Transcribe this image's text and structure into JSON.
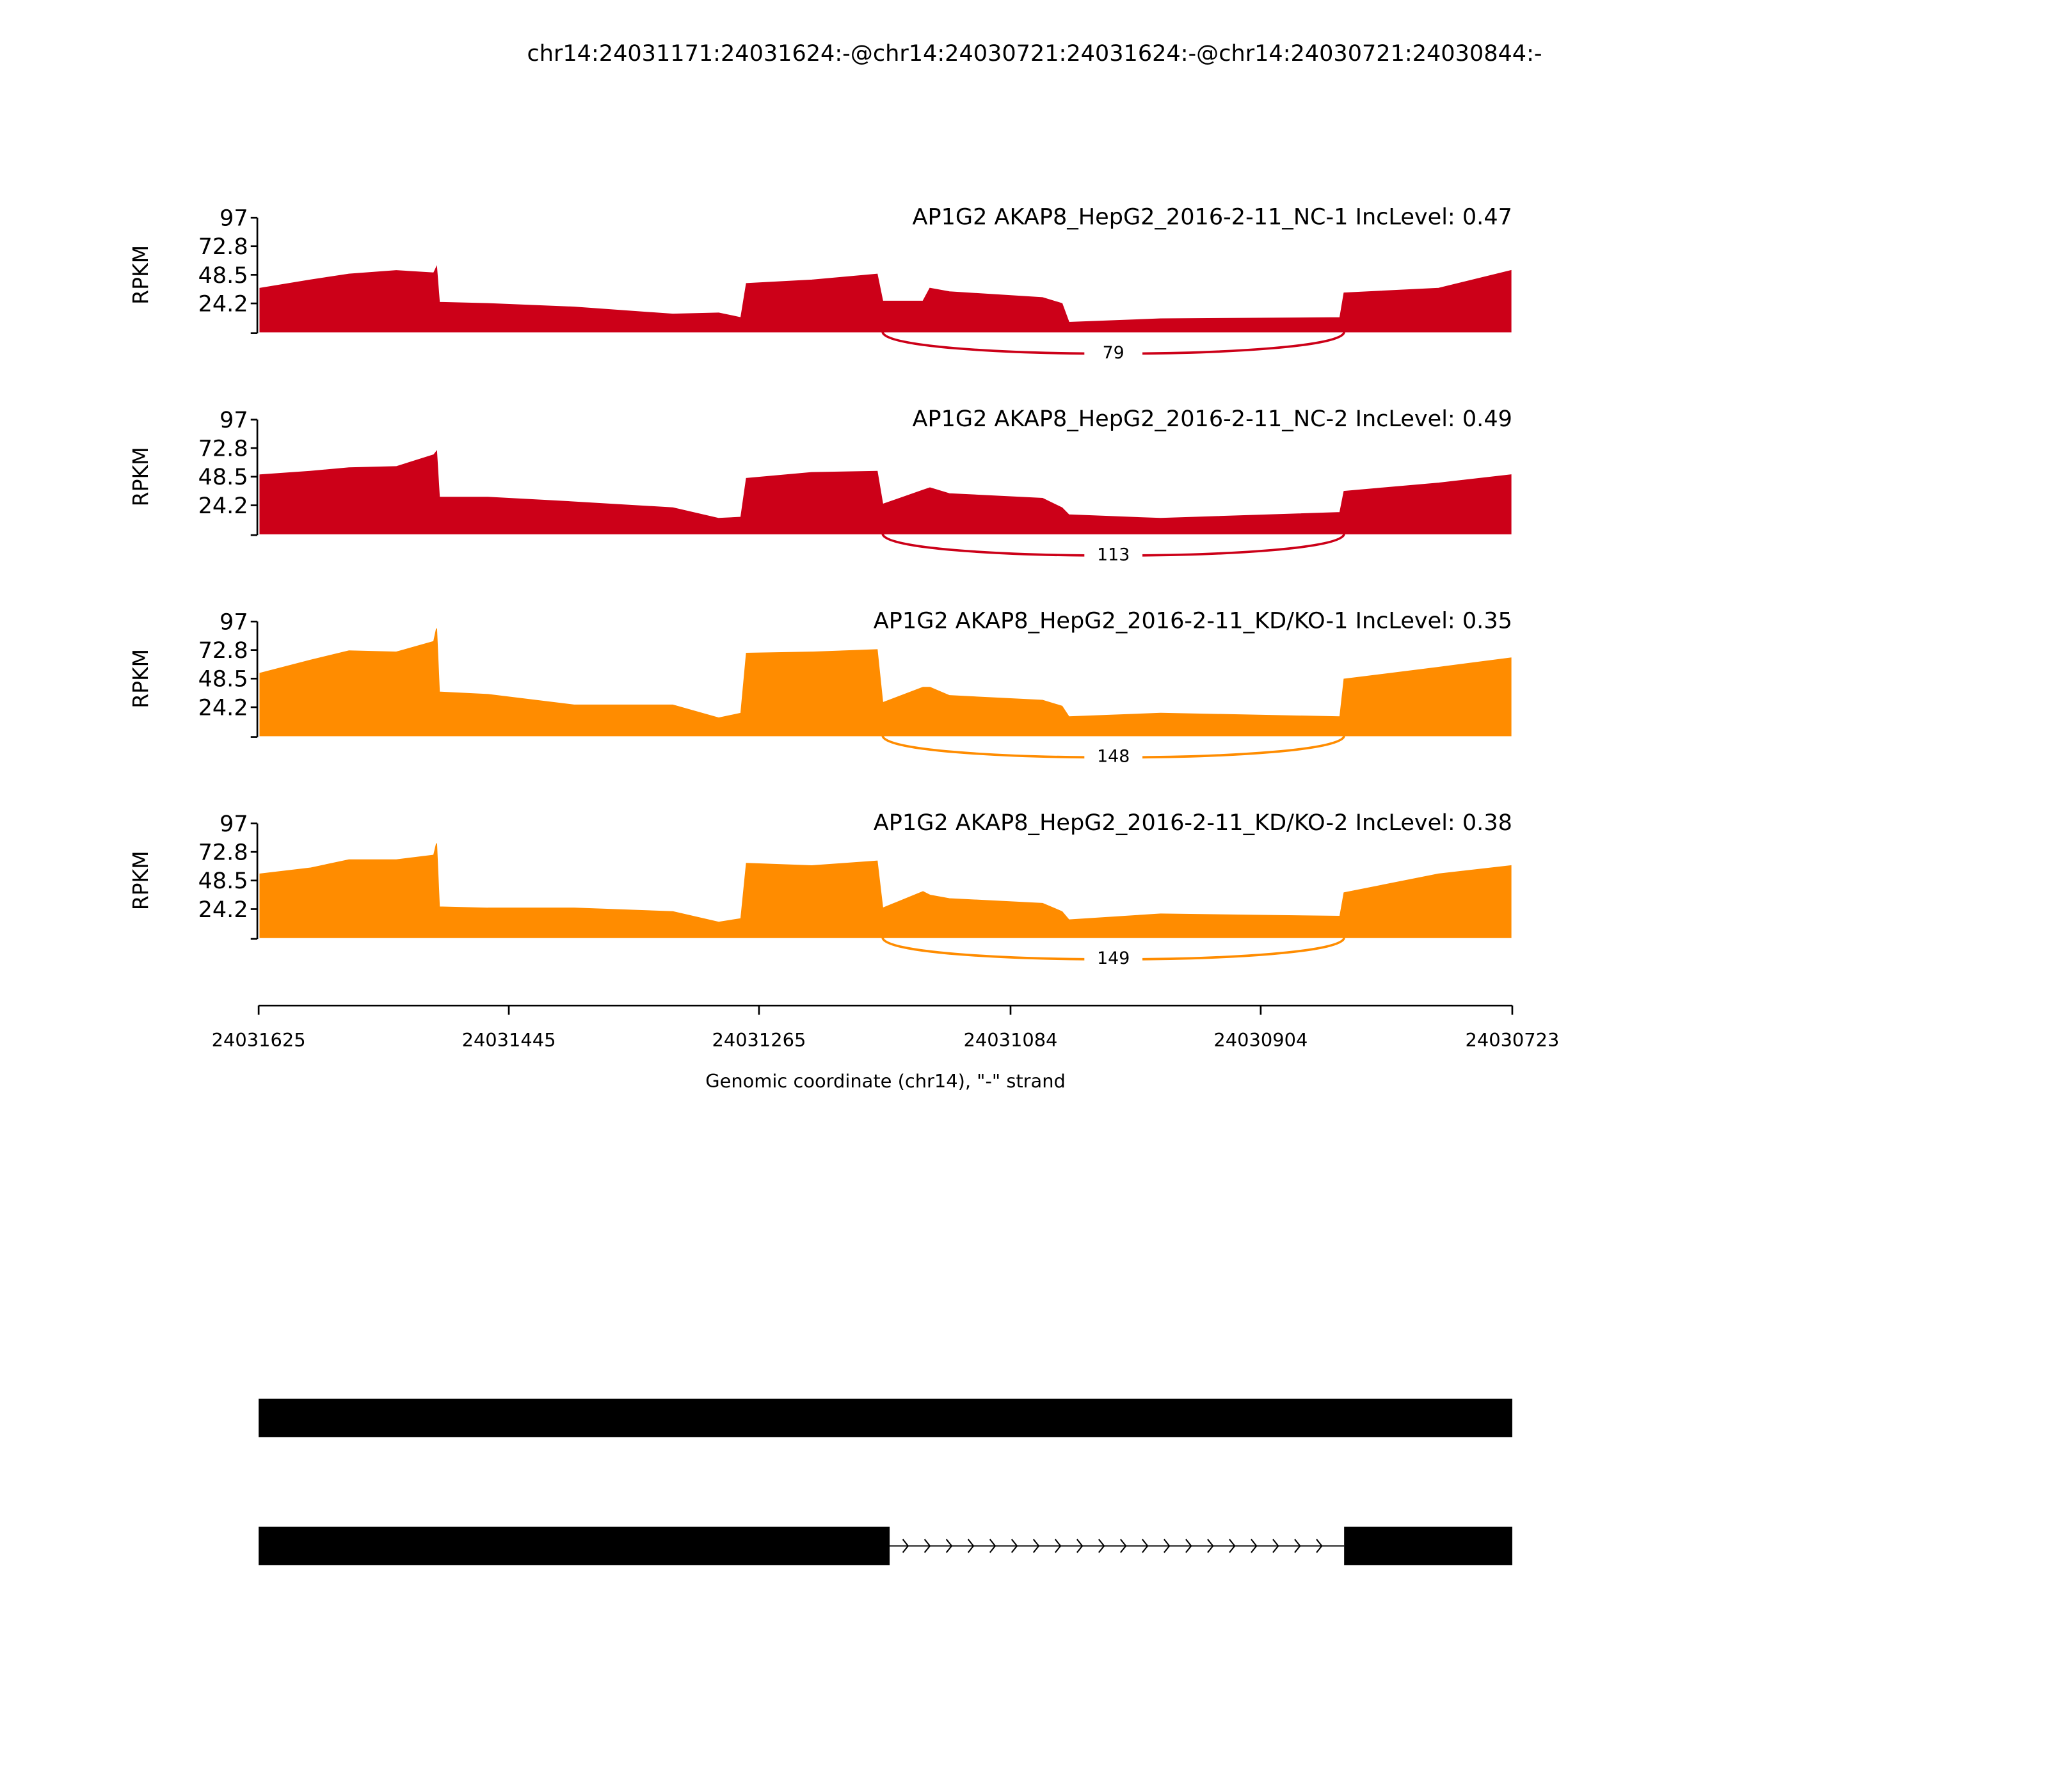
{
  "chart_data": {
    "type": "sashimi",
    "title": "chr14:24031171:24031624:-@chr14:24030721:24031624:-@chr14:24030721:24030844:-",
    "xlabel": "Genomic coordinate (chr14), \"-\" strand",
    "ylabel": "RPKM",
    "xlim": [
      24031625,
      24030723
    ],
    "xticks": [
      24031625,
      24031445,
      24031265,
      24031084,
      24030904,
      24030723
    ],
    "ylim": [
      0,
      97
    ],
    "yticks": [
      24.2,
      48.5,
      72.8,
      97
    ],
    "x": [
      24031624,
      24031588,
      24031560,
      24031526,
      24031499,
      24031497,
      24031495,
      24031460,
      24031398,
      24031327,
      24031294,
      24031278,
      24031274,
      24031227,
      24031180,
      24031176,
      24031147,
      24031142,
      24031128,
      24031061,
      24031047,
      24031042,
      24030976,
      24030847,
      24030844,
      24030776,
      24030724
    ],
    "junction": {
      "start": 24031176,
      "end": 24030844
    },
    "series": [
      {
        "name": "AP1G2 AKAP8_HepG2_2016-2-11_NC-1 IncLevel: 0.47",
        "color": "#cc0018",
        "junction_count": 79,
        "values": [
          37,
          44,
          49,
          52,
          50,
          55,
          25,
          24,
          21,
          15,
          16,
          12,
          41,
          44,
          49,
          26,
          26,
          37,
          34,
          29,
          24,
          8,
          11,
          12,
          33,
          37,
          52
        ]
      },
      {
        "name": "AP1G2 AKAP8_HepG2_2016-2-11_NC-2 IncLevel: 0.49",
        "color": "#cc0018",
        "junction_count": 113,
        "values": [
          50,
          53,
          56,
          57,
          67,
          70,
          31,
          31,
          27,
          22,
          13,
          14,
          47,
          52,
          53,
          25,
          37,
          39,
          34,
          30,
          22,
          16,
          13,
          18,
          36,
          43,
          50
        ]
      },
      {
        "name": "AP1G2 AKAP8_HepG2_2016-2-11_KD/KO-1 IncLevel: 0.35",
        "color": "#ff8c00",
        "junction_count": 148,
        "values": [
          53,
          64,
          72,
          71,
          80,
          91,
          37,
          35,
          26,
          26,
          15,
          19,
          70,
          71,
          73,
          28,
          41,
          41,
          34,
          30,
          25,
          16,
          19,
          16,
          48,
          58,
          66
        ]
      },
      {
        "name": "AP1G2 AKAP8_HepG2_2016-2-11_KD/KO-2 IncLevel: 0.38",
        "color": "#ff8c00",
        "junction_count": 149,
        "values": [
          54,
          59,
          66,
          66,
          70,
          80,
          26,
          25,
          25,
          22,
          13,
          16,
          63,
          61,
          65,
          25,
          39,
          36,
          33,
          29,
          22,
          15,
          20,
          18,
          38,
          54,
          61
        ]
      }
    ],
    "transcripts": [
      {
        "exons": [
          [
            24031625,
            24030723
          ]
        ]
      },
      {
        "exons": [
          [
            24031625,
            24031171
          ],
          [
            24030844,
            24030723
          ]
        ]
      }
    ]
  }
}
